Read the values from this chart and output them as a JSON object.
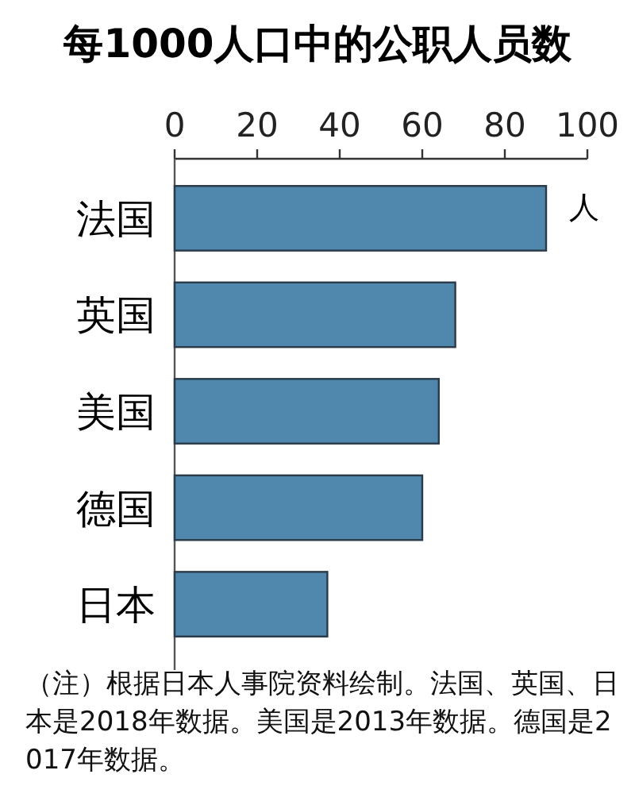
{
  "chart_data": {
    "type": "bar",
    "orientation": "horizontal",
    "title": "每1000人口中的公职人员数",
    "xlabel": "人",
    "categories": [
      "法国",
      "英国",
      "美国",
      "德国",
      "日本"
    ],
    "values": [
      90,
      68,
      64,
      60,
      37
    ],
    "color": "#4f87ad",
    "xlim": [
      0,
      100
    ],
    "xticks": [
      0,
      20,
      40,
      60,
      80,
      100
    ],
    "grid": false,
    "annotations": [
      "（注）根据日本人事院资料绘制。法国、英国、日本是2018年数据。美国是2013年数据。德国是2017年数据。"
    ]
  }
}
